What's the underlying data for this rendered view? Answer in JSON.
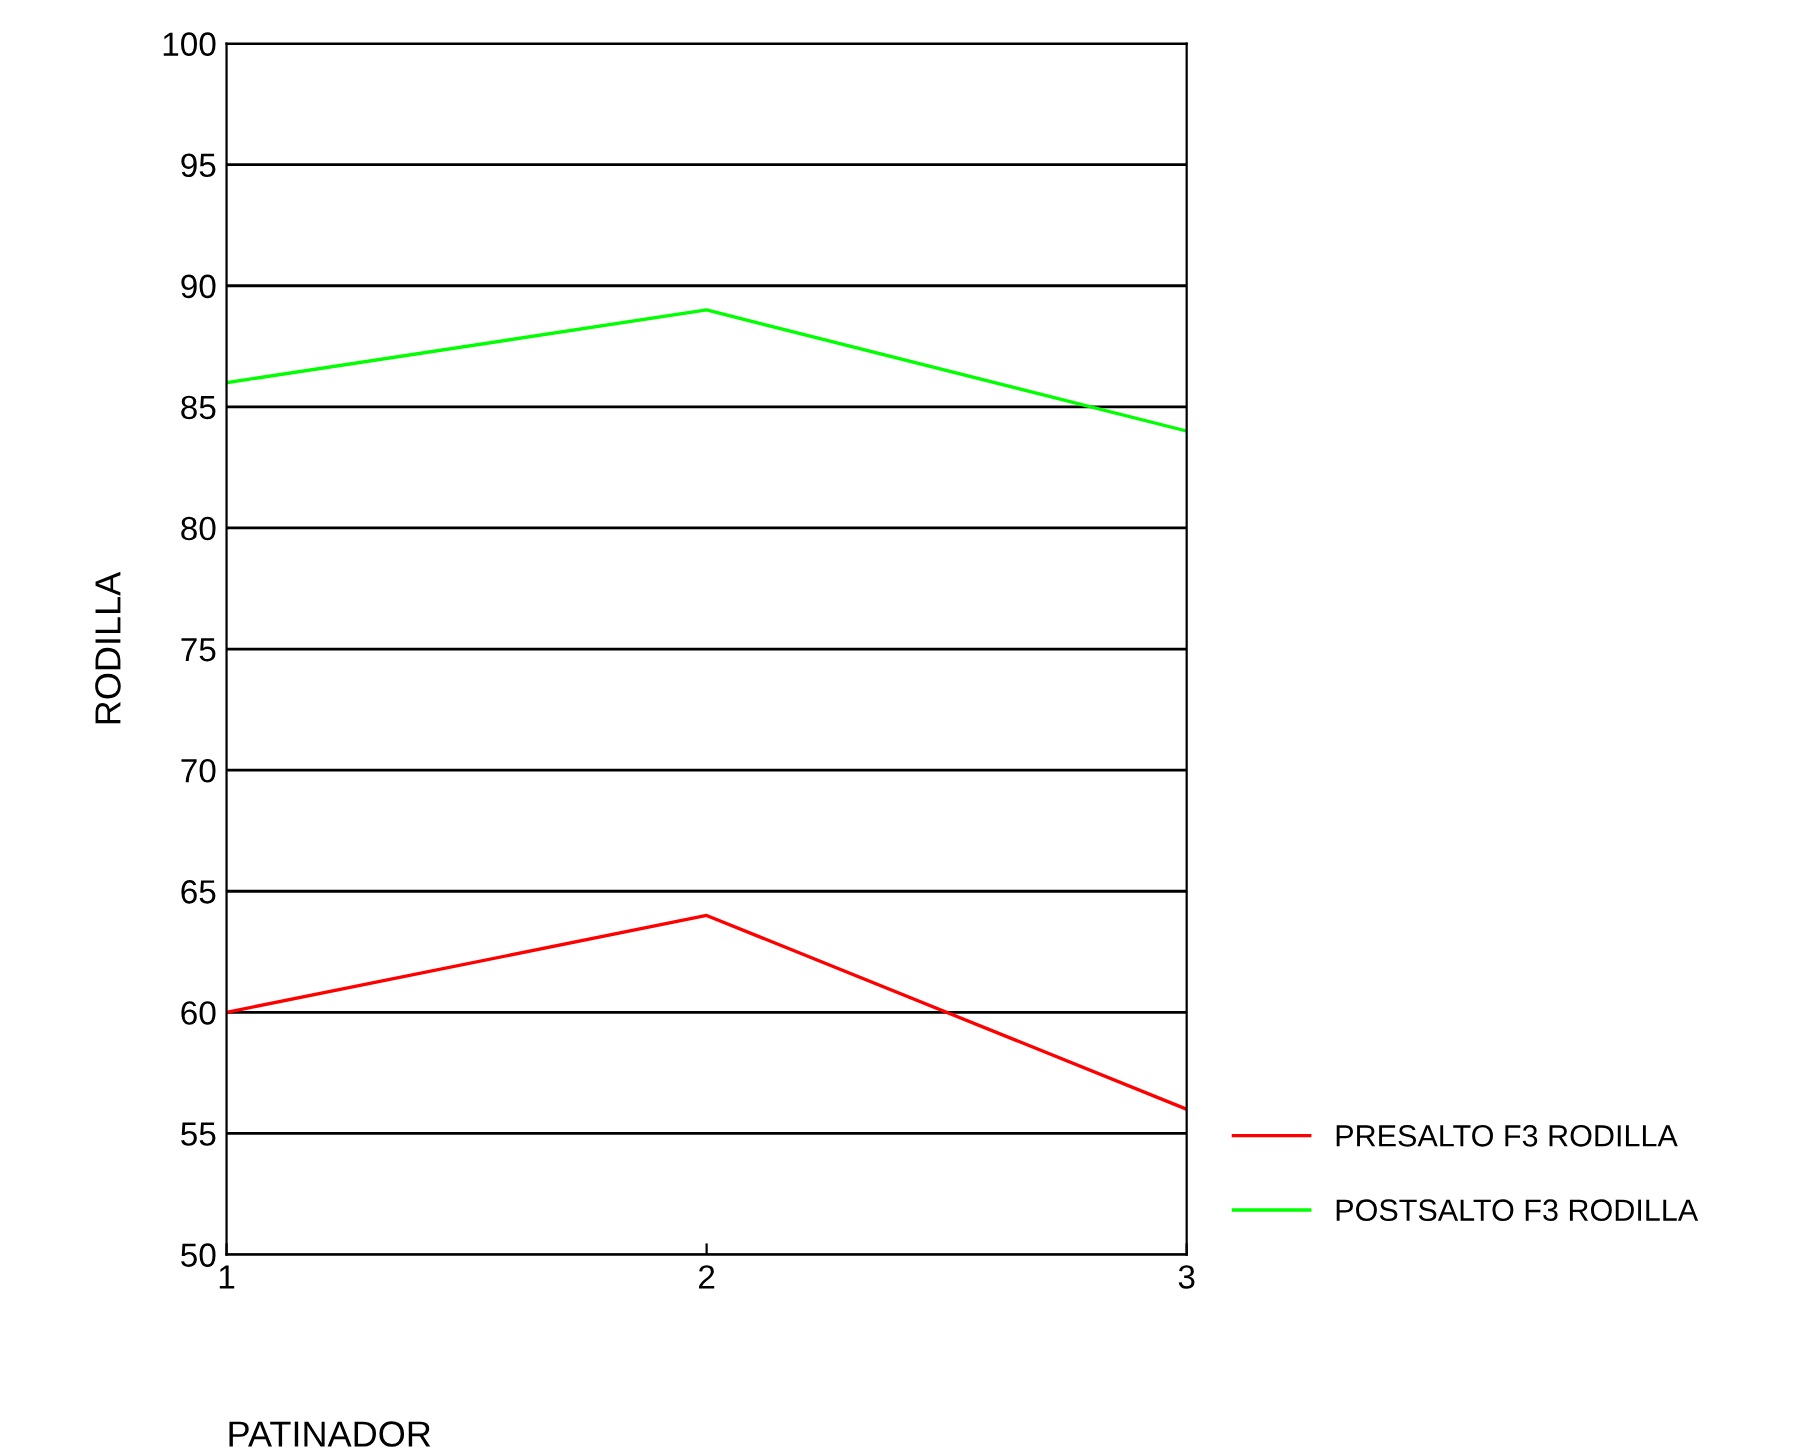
{
  "chart_data": {
    "type": "line",
    "xlabel": "PATINADOR",
    "ylabel": "RODILLA",
    "x": [
      1,
      2,
      3
    ],
    "series": [
      {
        "name": "PRESALTO F3 RODILLA",
        "color": "#ff0000",
        "values": [
          60,
          64,
          56
        ]
      },
      {
        "name": "POSTSALTO F3 RODILLA",
        "color": "#00ff00",
        "values": [
          86,
          89,
          84
        ]
      }
    ],
    "xlim": [
      1,
      3
    ],
    "xticks": [
      1,
      2,
      3
    ],
    "ylim": [
      50,
      100
    ],
    "yticks": [
      50,
      55,
      60,
      65,
      70,
      75,
      80,
      85,
      90,
      95,
      100
    ],
    "grid": "y",
    "legend": "bottom right",
    "marker": "none",
    "line_style": "solid"
  }
}
